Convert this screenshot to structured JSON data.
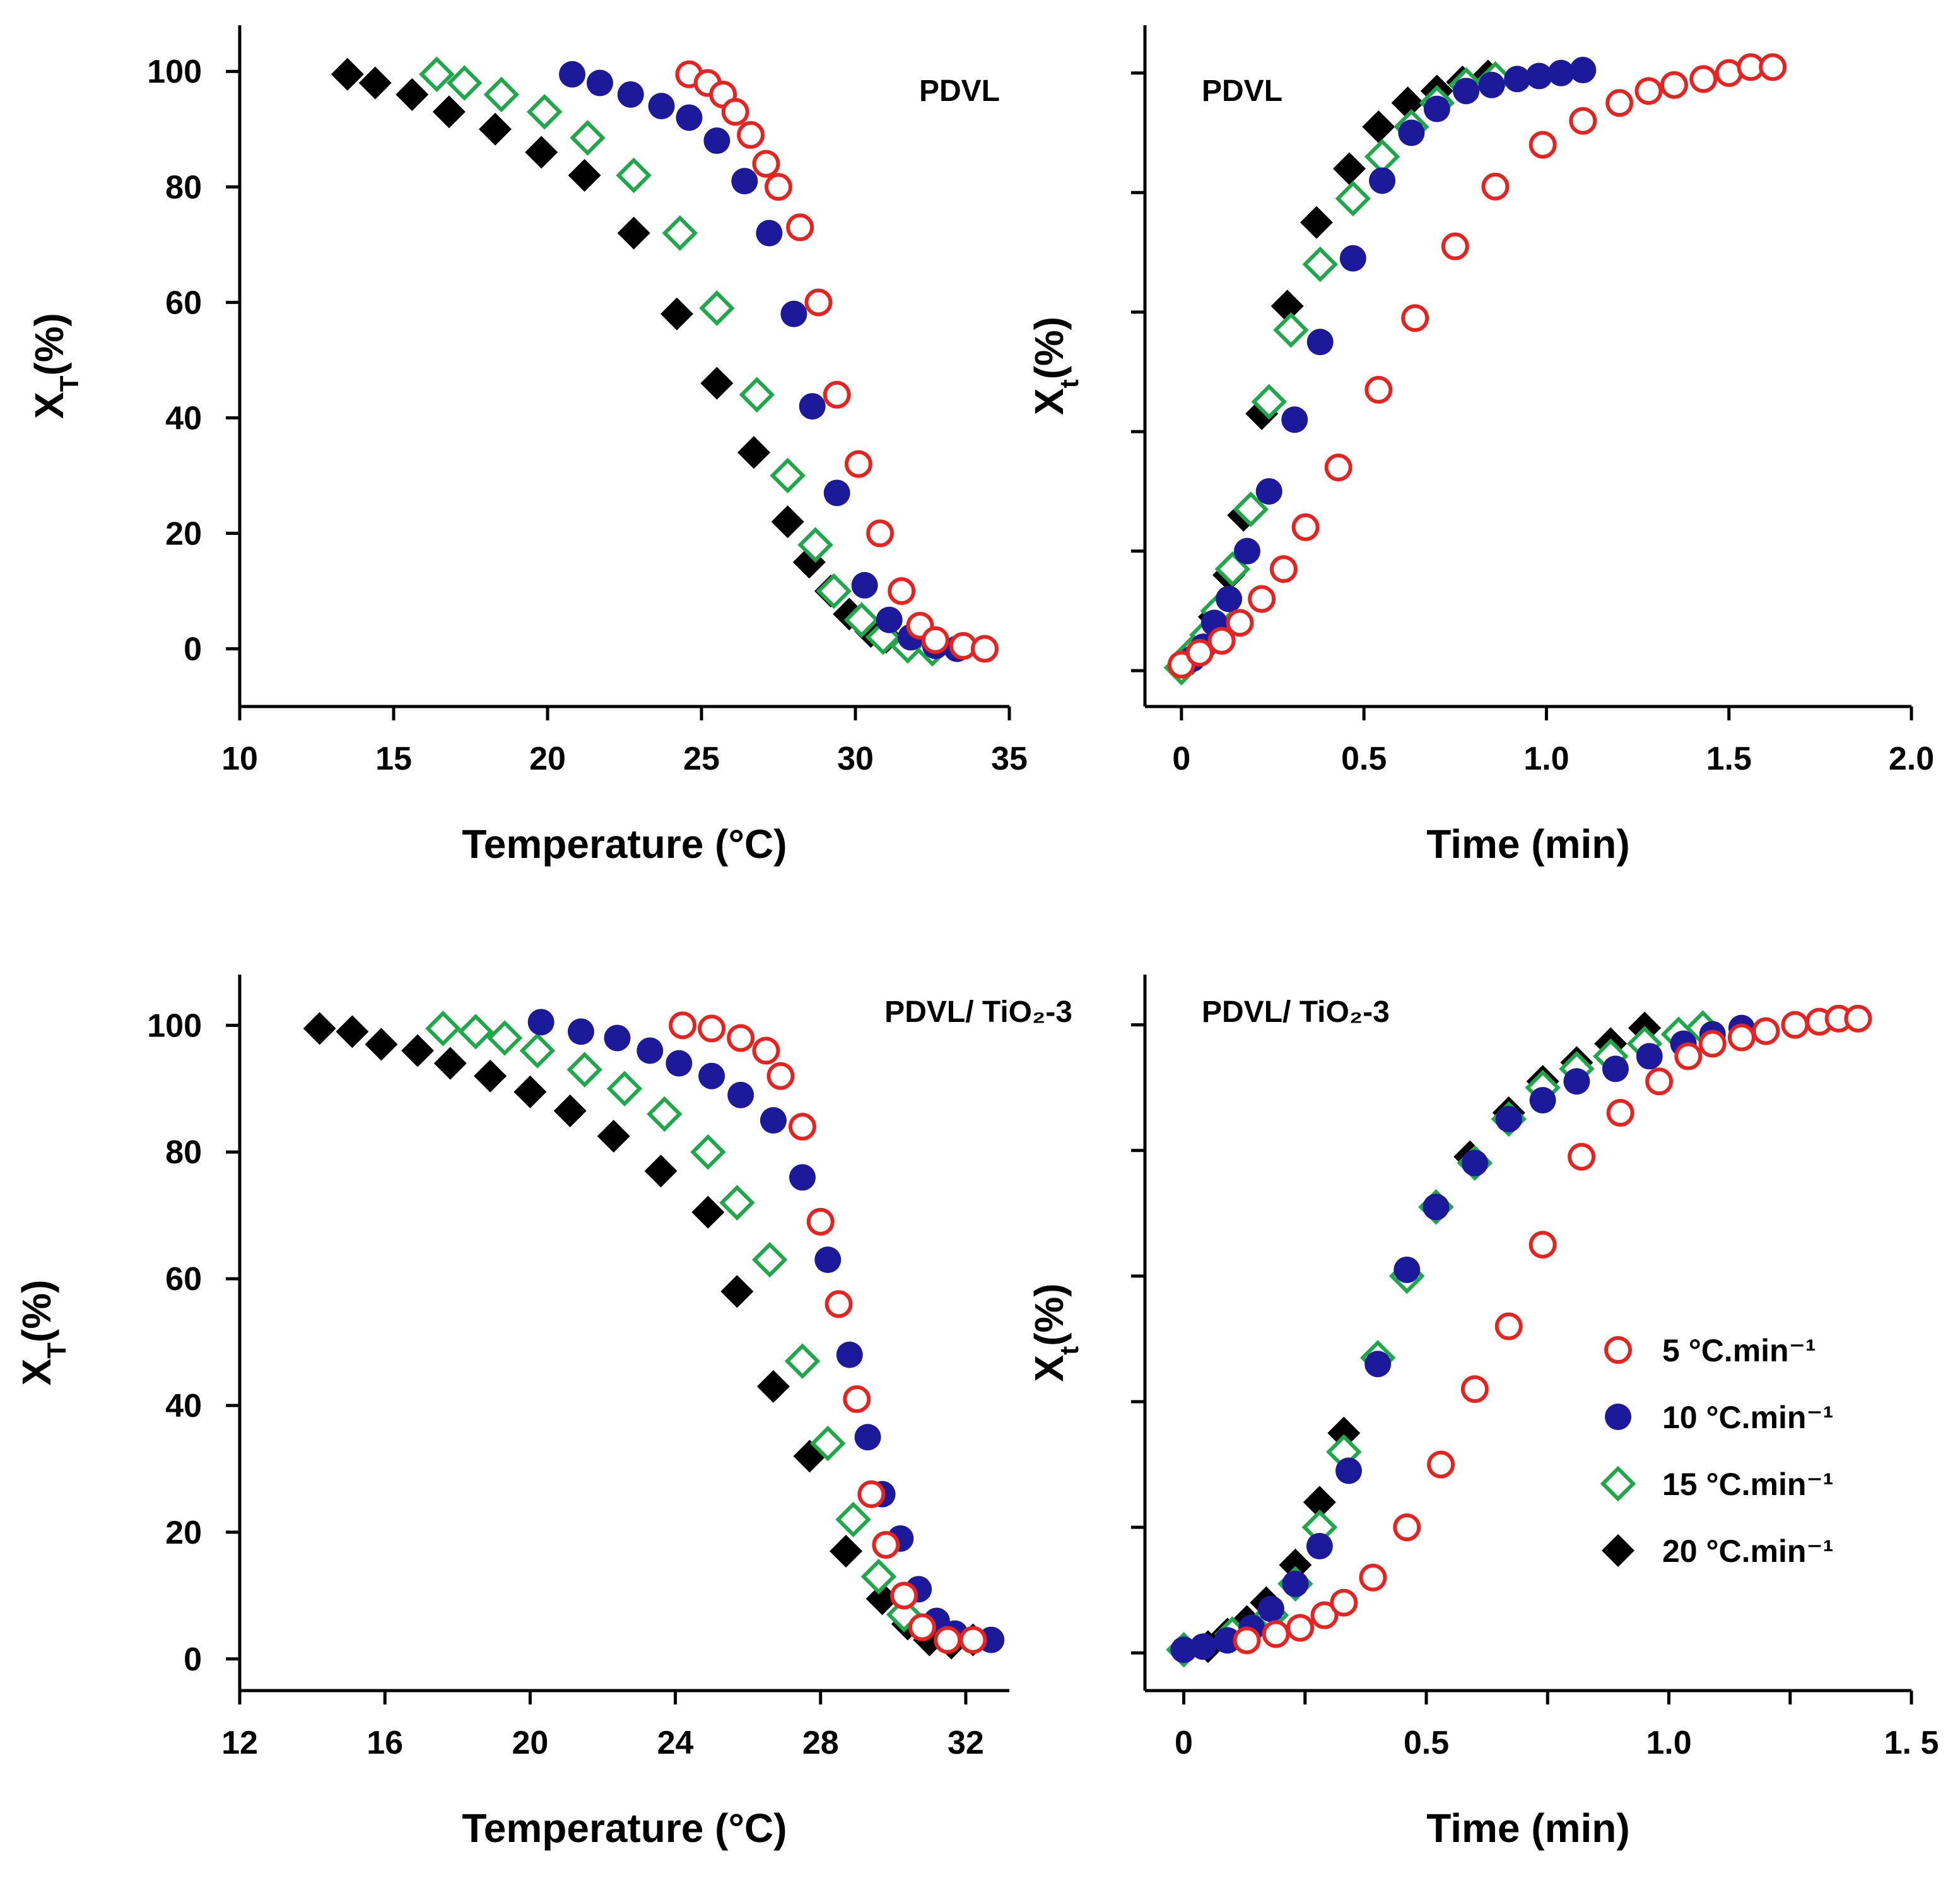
{
  "legend": {
    "entries": [
      {
        "series": "s5",
        "label": "5 °C.min⁻¹"
      },
      {
        "series": "s10",
        "label": "10 °C.min⁻¹"
      },
      {
        "series": "s15",
        "label": "15 °C.min⁻¹"
      },
      {
        "series": "s20",
        "label": "20 °C.min⁻¹"
      }
    ]
  },
  "series_styles": {
    "s5": {
      "marker": "open-circle",
      "color": "#e8231f"
    },
    "s10": {
      "marker": "filled-circle",
      "color": "#1c1a9a"
    },
    "s15": {
      "marker": "open-diamond",
      "color": "#1fa84a"
    },
    "s20": {
      "marker": "filled-diamond",
      "color": "#000000"
    }
  },
  "chart_data": [
    {
      "id": "a",
      "type": "scatter",
      "title": "PDVL",
      "xlabel": "Temperature (°C)",
      "ylabel": "Xᵀ(%)",
      "ylabel_main": "X",
      "ylabel_sub": "T",
      "ylabel_tail": "(%)",
      "xlim": [
        10,
        35
      ],
      "ylim": [
        -10,
        108
      ],
      "xticks": [
        10,
        15,
        20,
        25,
        30,
        35
      ],
      "xtick_labels": [
        "10",
        "15",
        "20",
        "25",
        "30",
        "35"
      ],
      "yticks": [
        0,
        20,
        40,
        60,
        80,
        100
      ],
      "ytick_labels": [
        "0",
        "20",
        "40",
        "60",
        "80",
        "100"
      ],
      "series": [
        {
          "name": "s5",
          "x": [
            24.6,
            25.2,
            25.7,
            26.1,
            26.6,
            27.1,
            27.5,
            28.2,
            28.8,
            29.4,
            30.1,
            30.8,
            31.5,
            32.1,
            32.6,
            33.5,
            34.2
          ],
          "y": [
            99.5,
            98,
            96,
            93,
            89,
            84,
            80,
            73,
            60,
            44,
            32,
            20,
            10,
            4,
            1.5,
            0.5,
            0
          ]
        },
        {
          "name": "s10",
          "x": [
            20.8,
            21.7,
            22.7,
            23.7,
            24.6,
            25.5,
            26.4,
            27.2,
            28.0,
            28.6,
            29.4,
            30.3,
            31.1,
            31.8,
            32.6,
            33.3
          ],
          "y": [
            99.5,
            98,
            96,
            94,
            92,
            88,
            81,
            72,
            58,
            42,
            27,
            11,
            5,
            2,
            0.5,
            0
          ]
        },
        {
          "name": "s15",
          "x": [
            16.4,
            17.3,
            18.5,
            19.9,
            21.3,
            22.8,
            24.3,
            25.5,
            26.8,
            27.8,
            28.7,
            29.3,
            30.2,
            30.9,
            31.7,
            32.5
          ],
          "y": [
            99.5,
            98,
            96,
            93,
            88.5,
            82,
            72,
            59,
            44,
            30,
            18,
            10,
            5,
            2,
            0.5,
            0
          ]
        },
        {
          "name": "s20",
          "x": [
            13.5,
            14.4,
            15.6,
            16.8,
            18.3,
            19.8,
            21.2,
            22.8,
            24.2,
            25.5,
            26.7,
            27.8,
            28.5,
            29.2,
            29.8,
            30.5,
            31.0
          ],
          "y": [
            99.5,
            98,
            96,
            93,
            90,
            86,
            82,
            72,
            58,
            46,
            34,
            22,
            15,
            10,
            6,
            3,
            2
          ]
        }
      ]
    },
    {
      "id": "b",
      "type": "scatter",
      "title": "PDVL",
      "xlabel": "Time (min)",
      "ylabel": "Xₜ(%)",
      "ylabel_main": "X",
      "ylabel_sub": "t",
      "ylabel_tail": "(%)",
      "xlim": [
        -0.1,
        2.0
      ],
      "ylim": [
        -6,
        108
      ],
      "xticks": [
        0,
        0.5,
        1.0,
        1.5,
        2.0
      ],
      "xtick_labels": [
        "0",
        "0.5",
        "1.0",
        "1.5",
        "2.0"
      ],
      "yticks": [
        0,
        20,
        40,
        60,
        80,
        100
      ],
      "ytick_labels": [
        "",
        "",
        "",
        "",
        "",
        ""
      ],
      "series": [
        {
          "name": "s5",
          "x": [
            0,
            0.05,
            0.11,
            0.16,
            0.22,
            0.28,
            0.34,
            0.43,
            0.54,
            0.64,
            0.75,
            0.86,
            0.99,
            1.1,
            1.2,
            1.28,
            1.35,
            1.43,
            1.5,
            1.56,
            1.62
          ],
          "y": [
            1,
            3,
            5,
            8,
            12,
            17,
            24,
            34,
            47,
            59,
            71,
            81,
            88,
            92,
            95,
            97,
            98,
            99,
            100,
            101,
            101
          ]
        },
        {
          "name": "s10",
          "x": [
            0.03,
            0.06,
            0.09,
            0.13,
            0.18,
            0.24,
            0.31,
            0.38,
            0.47,
            0.55,
            0.63,
            0.7,
            0.78,
            0.85,
            0.92,
            0.98,
            1.04,
            1.1
          ],
          "y": [
            2,
            4,
            8,
            12,
            20,
            30,
            42,
            55,
            69,
            82,
            90,
            94,
            97,
            98,
            99,
            99.5,
            100,
            100.5
          ]
        },
        {
          "name": "s15",
          "x": [
            0,
            0.03,
            0.07,
            0.1,
            0.14,
            0.19,
            0.24,
            0.3,
            0.38,
            0.47,
            0.55,
            0.63,
            0.7,
            0.78,
            0.86
          ],
          "y": [
            0.5,
            3,
            6,
            10,
            17,
            27,
            45,
            57,
            68,
            79,
            86,
            91,
            95,
            98,
            99
          ]
        },
        {
          "name": "s20",
          "x": [
            0,
            0.03,
            0.06,
            0.09,
            0.13,
            0.17,
            0.22,
            0.29,
            0.37,
            0.46,
            0.54,
            0.62,
            0.7,
            0.77,
            0.84
          ],
          "y": [
            0.5,
            2,
            5,
            9,
            16,
            26,
            43,
            61,
            75,
            84,
            91,
            95,
            97,
            98.5,
            99.5
          ]
        }
      ]
    },
    {
      "id": "c",
      "type": "scatter",
      "title": "PDVL/ TiO₂-3",
      "xlabel": "Temperature (°C)",
      "ylabel": "Xᵀ(%)",
      "ylabel_main": "X",
      "ylabel_sub": "T",
      "ylabel_tail": "(%)",
      "xlim": [
        12,
        33.2
      ],
      "ylim": [
        -5,
        108
      ],
      "xticks": [
        12,
        16,
        20,
        24,
        28,
        32
      ],
      "xtick_labels": [
        "12",
        "16",
        "20",
        "24",
        "28",
        "32"
      ],
      "yticks": [
        0,
        20,
        40,
        60,
        80,
        100
      ],
      "ytick_labels": [
        "0",
        "20",
        "40",
        "60",
        "80",
        "100"
      ],
      "series": [
        {
          "name": "s5",
          "x": [
            24.2,
            25.0,
            25.8,
            26.5,
            26.9,
            27.5,
            28.0,
            28.5,
            29.0,
            29.4,
            29.8,
            30.3,
            30.8,
            31.5,
            32.2
          ],
          "y": [
            100,
            99.5,
            98,
            96,
            92,
            84,
            69,
            56,
            41,
            26,
            18,
            10,
            5,
            3,
            3
          ]
        },
        {
          "name": "s10",
          "x": [
            20.3,
            21.4,
            22.4,
            23.3,
            24.1,
            25.0,
            25.8,
            26.7,
            27.5,
            28.2,
            28.8,
            29.3,
            29.7,
            30.2,
            30.7,
            31.2,
            31.7,
            32.7
          ],
          "y": [
            100.5,
            99,
            98,
            96,
            94,
            92,
            89,
            85,
            76,
            63,
            48,
            35,
            26,
            19,
            11,
            6,
            4,
            3
          ]
        },
        {
          "name": "s15",
          "x": [
            17.6,
            18.5,
            19.3,
            20.2,
            21.5,
            22.6,
            23.7,
            24.9,
            25.7,
            26.6,
            27.5,
            28.2,
            28.9,
            29.6,
            30.3
          ],
          "y": [
            99.5,
            99,
            98,
            96,
            93,
            90,
            86,
            80,
            72,
            63,
            47,
            34,
            22,
            13,
            7
          ]
        },
        {
          "name": "s20",
          "x": [
            14.2,
            15.1,
            15.9,
            16.9,
            17.8,
            18.9,
            20.0,
            21.1,
            22.3,
            23.6,
            24.9,
            25.7,
            26.7,
            27.7,
            28.7,
            29.7,
            30.4,
            31.0,
            31.6,
            32.2
          ],
          "y": [
            99.5,
            99,
            97,
            96,
            94,
            92,
            89.5,
            86.5,
            82.5,
            77,
            70.5,
            58,
            43,
            32,
            17,
            9.5,
            5.5,
            3,
            2.5,
            3
          ]
        }
      ]
    },
    {
      "id": "d",
      "type": "scatter",
      "title": "PDVL/ TiO₂-3",
      "xlabel": "Time (min)",
      "ylabel": "Xₜ(%)",
      "ylabel_main": "X",
      "ylabel_sub": "t",
      "ylabel_tail": "(%)",
      "xlim": [
        -0.08,
        1.5
      ],
      "ylim": [
        -6,
        108
      ],
      "xticks": [
        0,
        0.5,
        1.0,
        1.5
      ],
      "xtick_labels": [
        "0",
        "0.5",
        "1.0",
        "1. 5"
      ],
      "minor_xticks": [
        0.25,
        0.75,
        1.25
      ],
      "yticks": [
        0,
        20,
        40,
        60,
        80,
        100
      ],
      "ytick_labels": [
        "",
        "",
        "",
        "",
        "",
        ""
      ],
      "series": [
        {
          "name": "s5",
          "x": [
            0.13,
            0.19,
            0.24,
            0.29,
            0.33,
            0.39,
            0.46,
            0.53,
            0.6,
            0.67,
            0.74,
            0.82,
            0.9,
            0.98,
            1.04,
            1.09,
            1.15,
            1.2,
            1.26,
            1.31,
            1.35,
            1.39
          ],
          "y": [
            2,
            3,
            4,
            6,
            8,
            12,
            20,
            30,
            42,
            52,
            65,
            79,
            86,
            91,
            95,
            97,
            98,
            99,
            100,
            100.5,
            101,
            101
          ]
        },
        {
          "name": "s10",
          "x": [
            0,
            0.04,
            0.09,
            0.14,
            0.18,
            0.23,
            0.28,
            0.34,
            0.4,
            0.46,
            0.52,
            0.6,
            0.67,
            0.74,
            0.81,
            0.89,
            0.96,
            1.03,
            1.09,
            1.15
          ],
          "y": [
            0.5,
            1,
            2,
            4,
            7,
            11,
            17,
            29,
            46,
            61,
            71,
            78,
            85,
            88,
            91,
            93,
            95,
            97,
            98.5,
            99.5
          ]
        },
        {
          "name": "s15",
          "x": [
            0,
            0.1,
            0.18,
            0.23,
            0.28,
            0.33,
            0.4,
            0.46,
            0.52,
            0.6,
            0.67,
            0.74,
            0.81,
            0.88,
            0.95,
            1.02,
            1.07
          ],
          "y": [
            0.5,
            3,
            6,
            11,
            20,
            32,
            47,
            60,
            71,
            78,
            85,
            90,
            93,
            95,
            97,
            98.5,
            99.5
          ]
        },
        {
          "name": "s20",
          "x": [
            0,
            0.05,
            0.09,
            0.13,
            0.17,
            0.23,
            0.28,
            0.33,
            0.4,
            0.46,
            0.52,
            0.59,
            0.67,
            0.74,
            0.81,
            0.88,
            0.95
          ],
          "y": [
            0.5,
            1,
            3,
            5,
            8,
            14,
            24,
            35,
            47,
            60,
            71,
            79,
            86,
            91,
            94,
            97,
            99.5
          ]
        }
      ]
    }
  ]
}
